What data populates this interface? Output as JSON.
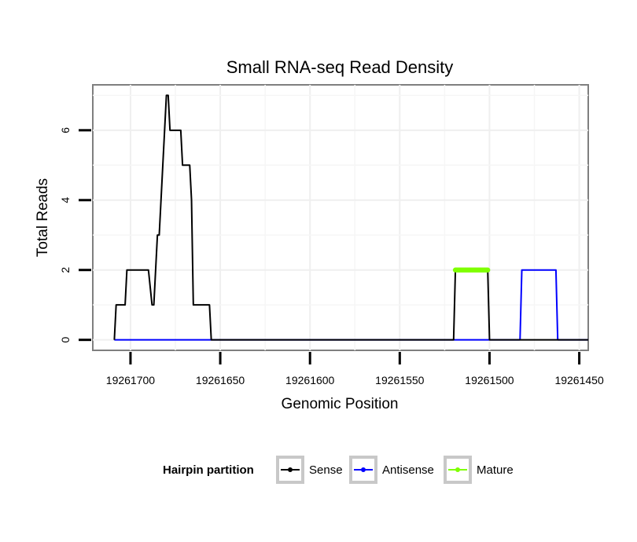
{
  "chart_data": {
    "type": "line",
    "title": "Small RNA-seq Read Density",
    "xlabel": "Genomic Position",
    "ylabel": "Total Reads",
    "xlim": [
      19261721,
      19261445
    ],
    "ylim": [
      -0.3,
      7.3
    ],
    "x_reversed": true,
    "x_ticks": [
      19261700,
      19261650,
      19261600,
      19261550,
      19261500,
      19261450
    ],
    "x_tick_labels": [
      "19261700",
      "19261650",
      "19261600",
      "19261550",
      "19261500",
      "19261450"
    ],
    "y_ticks": [
      0,
      2,
      4,
      6
    ],
    "y_tick_labels": [
      "0",
      "2",
      "4",
      "6"
    ],
    "grid": true,
    "legend": {
      "title": "Hairpin partition",
      "position": "bottom",
      "entries": [
        "Sense",
        "Antisense",
        "Mature"
      ]
    },
    "series": [
      {
        "name": "Sense",
        "color": "#000000",
        "x": [
          19261709,
          19261708,
          19261703,
          19261702,
          19261698,
          19261696,
          19261692,
          19261690,
          19261688,
          19261687,
          19261685,
          19261684,
          19261682,
          19261680,
          19261679,
          19261678,
          19261672,
          19261671,
          19261668,
          19261667,
          19261666,
          19261665,
          19261660,
          19261656,
          19261655,
          19261520,
          19261519,
          19261501,
          19261500,
          19261445
        ],
        "y": [
          0,
          1,
          1,
          2,
          2,
          2,
          2,
          2,
          1,
          1,
          3,
          3,
          5,
          7,
          7,
          6,
          6,
          5,
          5,
          5,
          4,
          1,
          1,
          1,
          0,
          0,
          2,
          2,
          0,
          0
        ]
      },
      {
        "name": "Antisense",
        "color": "#0000FF",
        "x": [
          19261709,
          19261483,
          19261482,
          19261463,
          19261462,
          19261445
        ],
        "y": [
          0,
          0,
          2,
          2,
          0,
          0
        ]
      },
      {
        "name": "Mature",
        "color": "#7FFF00",
        "x": [
          19261519,
          19261501
        ],
        "y": [
          2,
          2
        ]
      }
    ]
  }
}
